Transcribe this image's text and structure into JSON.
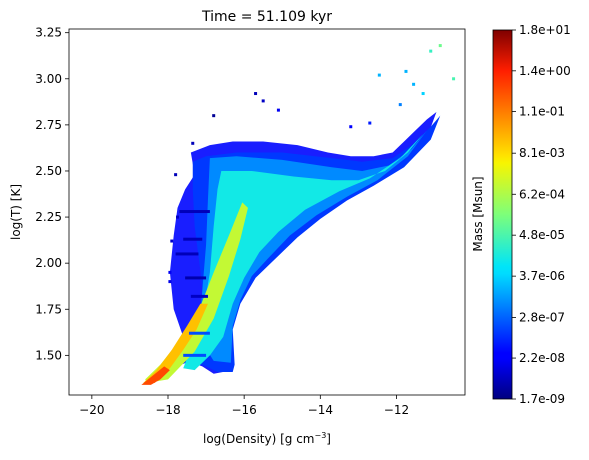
{
  "chart_data": {
    "type": "heatmap",
    "title": "Time = 51.109 kyr",
    "xlabel": "log(Density) [g cm",
    "xlabel_sup": "−3",
    "xlabel_close": "]",
    "ylabel": "log(T) [K]",
    "xlim": [
      -20.6,
      -10.2
    ],
    "ylim": [
      1.285,
      3.27
    ],
    "xticks": [
      -20,
      -18,
      -16,
      -14,
      -12
    ],
    "xtick_labels": [
      "−20",
      "−18",
      "−16",
      "−14",
      "−12"
    ],
    "yticks": [
      1.5,
      1.75,
      2.0,
      2.25,
      2.5,
      2.75,
      3.0,
      3.25
    ],
    "ytick_labels": [
      "1.50",
      "1.75",
      "2.00",
      "2.25",
      "2.50",
      "2.75",
      "3.00",
      "3.25"
    ],
    "grid": false,
    "colormap": "jet",
    "colorbar": {
      "label": "Mass [Msun]",
      "scale": "log",
      "range": [
        1.7e-09,
        18
      ],
      "ticks": [
        1.7e-09,
        2.2e-08,
        2.8e-07,
        3.7e-06,
        4.8e-05,
        0.00062,
        0.0081,
        0.11,
        1.4,
        18
      ],
      "tick_labels": [
        "1.7e-09",
        "2.2e-08",
        "2.8e-07",
        "3.7e-06",
        "4.8e-05",
        "6.2e-04",
        "8.1e-03",
        "1.1e-01",
        "1.4e+00",
        "1.8e+01"
      ]
    },
    "regions": [
      {
        "name": "outer",
        "level": 0.18,
        "polygon": [
          [
            -17.35,
            2.55
          ],
          [
            -17.0,
            2.58
          ],
          [
            -16.2,
            2.6
          ],
          [
            -15.0,
            2.6
          ],
          [
            -13.7,
            2.57
          ],
          [
            -12.9,
            2.55
          ],
          [
            -12.1,
            2.57
          ],
          [
            -11.6,
            2.64
          ],
          [
            -11.1,
            2.74
          ],
          [
            -10.85,
            2.8
          ],
          [
            -11.1,
            2.67
          ],
          [
            -11.8,
            2.52
          ],
          [
            -12.6,
            2.42
          ],
          [
            -13.3,
            2.34
          ],
          [
            -14.0,
            2.24
          ],
          [
            -14.6,
            2.14
          ],
          [
            -15.3,
            2.0
          ],
          [
            -15.7,
            1.92
          ],
          [
            -15.9,
            1.85
          ],
          [
            -16.1,
            1.78
          ],
          [
            -16.3,
            1.64
          ],
          [
            -16.25,
            1.45
          ],
          [
            -16.3,
            1.41
          ],
          [
            -16.7,
            1.41
          ],
          [
            -17.0,
            1.44
          ],
          [
            -17.4,
            1.47
          ],
          [
            -17.65,
            1.45
          ],
          [
            -17.4,
            1.55
          ],
          [
            -17.05,
            1.75
          ],
          [
            -17.15,
            1.96
          ],
          [
            -17.3,
            2.2
          ],
          [
            -17.35,
            2.4
          ]
        ]
      },
      {
        "name": "upper-mid",
        "level": 0.26,
        "polygon": [
          [
            -16.9,
            2.57
          ],
          [
            -16.2,
            2.58
          ],
          [
            -15.0,
            2.56
          ],
          [
            -13.7,
            2.52
          ],
          [
            -12.9,
            2.5
          ],
          [
            -12.2,
            2.53
          ],
          [
            -11.6,
            2.62
          ],
          [
            -11.2,
            2.72
          ],
          [
            -11.7,
            2.58
          ],
          [
            -12.5,
            2.45
          ],
          [
            -13.3,
            2.36
          ],
          [
            -14.1,
            2.26
          ],
          [
            -14.8,
            2.15
          ],
          [
            -15.4,
            2.02
          ],
          [
            -15.8,
            1.93
          ],
          [
            -16.1,
            1.8
          ],
          [
            -16.3,
            1.66
          ],
          [
            -16.35,
            1.46
          ],
          [
            -16.8,
            1.47
          ],
          [
            -17.2,
            1.6
          ],
          [
            -17.1,
            1.85
          ],
          [
            -17.0,
            2.1
          ],
          [
            -16.95,
            2.35
          ]
        ]
      },
      {
        "name": "core",
        "level": 0.38,
        "polygon": [
          [
            -16.6,
            2.5
          ],
          [
            -15.8,
            2.5
          ],
          [
            -14.7,
            2.47
          ],
          [
            -13.7,
            2.45
          ],
          [
            -13.0,
            2.45
          ],
          [
            -12.3,
            2.5
          ],
          [
            -11.7,
            2.6
          ],
          [
            -11.3,
            2.7
          ],
          [
            -11.9,
            2.57
          ],
          [
            -12.7,
            2.46
          ],
          [
            -13.5,
            2.39
          ],
          [
            -14.4,
            2.29
          ],
          [
            -15.1,
            2.17
          ],
          [
            -15.6,
            2.06
          ],
          [
            -16.0,
            1.92
          ],
          [
            -16.3,
            1.78
          ],
          [
            -16.55,
            1.6
          ],
          [
            -16.9,
            1.5
          ],
          [
            -17.3,
            1.42
          ],
          [
            -17.6,
            1.43
          ],
          [
            -17.1,
            1.7
          ],
          [
            -16.9,
            1.95
          ],
          [
            -16.8,
            2.2
          ],
          [
            -16.7,
            2.4
          ]
        ]
      },
      {
        "name": "ridge",
        "level": 0.58,
        "polygon": [
          [
            -18.55,
            1.35
          ],
          [
            -18.0,
            1.37
          ],
          [
            -17.3,
            1.52
          ],
          [
            -16.8,
            1.7
          ],
          [
            -16.4,
            1.93
          ],
          [
            -16.1,
            2.13
          ],
          [
            -15.9,
            2.3
          ],
          [
            -16.05,
            2.33
          ],
          [
            -16.4,
            2.15
          ],
          [
            -16.8,
            1.95
          ],
          [
            -17.2,
            1.74
          ],
          [
            -17.7,
            1.58
          ],
          [
            -18.2,
            1.45
          ],
          [
            -18.6,
            1.37
          ]
        ]
      },
      {
        "name": "ridge-core",
        "level": 0.7,
        "polygon": [
          [
            -18.65,
            1.35
          ],
          [
            -18.35,
            1.35
          ],
          [
            -17.95,
            1.43
          ],
          [
            -17.6,
            1.53
          ],
          [
            -17.25,
            1.64
          ],
          [
            -16.95,
            1.78
          ],
          [
            -17.15,
            1.78
          ],
          [
            -17.5,
            1.66
          ],
          [
            -17.9,
            1.53
          ],
          [
            -18.3,
            1.42
          ]
        ]
      },
      {
        "name": "ridge-peak",
        "level": 0.84,
        "polygon": [
          [
            -18.7,
            1.34
          ],
          [
            -18.45,
            1.34
          ],
          [
            -18.2,
            1.37
          ],
          [
            -17.95,
            1.42
          ],
          [
            -18.1,
            1.44
          ],
          [
            -18.4,
            1.39
          ]
        ]
      }
    ],
    "streaks": [
      {
        "level": 0.05,
        "x1": -17.7,
        "x2": -16.9,
        "y": 2.28
      },
      {
        "level": 0.05,
        "x1": -17.6,
        "x2": -17.1,
        "y": 2.13
      },
      {
        "level": 0.05,
        "x1": -17.8,
        "x2": -17.2,
        "y": 2.05
      },
      {
        "level": 0.04,
        "x1": -17.55,
        "x2": -17.0,
        "y": 1.92
      },
      {
        "level": 0.06,
        "x1": -17.4,
        "x2": -16.95,
        "y": 1.82
      },
      {
        "level": 0.2,
        "x1": -17.45,
        "x2": -16.9,
        "y": 1.62
      },
      {
        "level": 0.2,
        "x1": -17.6,
        "x2": -17.0,
        "y": 1.5
      }
    ],
    "specks": [
      [
        -12.45,
        3.02,
        0.3
      ],
      [
        -11.75,
        3.04,
        0.3
      ],
      [
        -11.1,
        3.15,
        0.42
      ],
      [
        -10.85,
        3.18,
        0.48
      ],
      [
        -11.55,
        2.97,
        0.3
      ],
      [
        -11.3,
        2.92,
        0.33
      ],
      [
        -10.5,
        3.0,
        0.44
      ],
      [
        -11.9,
        2.86,
        0.25
      ],
      [
        -15.7,
        2.92,
        0.05
      ],
      [
        -15.5,
        2.88,
        0.06
      ],
      [
        -16.8,
        2.8,
        0.02
      ],
      [
        -15.1,
        2.83,
        0.1
      ],
      [
        -13.2,
        2.74,
        0.12
      ],
      [
        -12.7,
        2.76,
        0.15
      ],
      [
        -17.35,
        2.65,
        0.05
      ],
      [
        -17.8,
        2.48,
        0.05
      ],
      [
        -17.75,
        2.25,
        0.06
      ],
      [
        -17.9,
        2.12,
        0.07
      ],
      [
        -17.95,
        1.95,
        0.1
      ],
      [
        -17.95,
        1.9,
        0.09
      ]
    ]
  }
}
